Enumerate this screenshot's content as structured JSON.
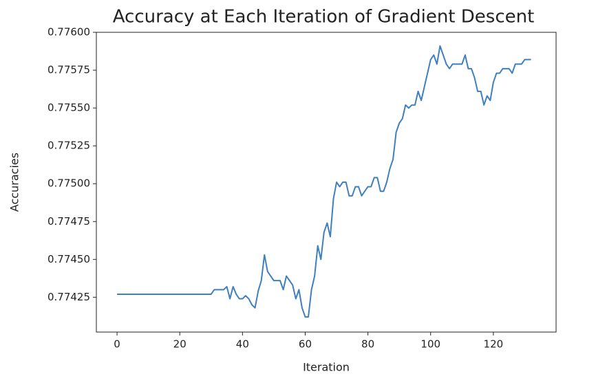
{
  "chart_data": {
    "type": "line",
    "title": "Accuracy at Each Iteration of Gradient Descent",
    "x_label": "Iteration",
    "y_label": "Accuracies",
    "x": [
      0,
      1,
      2,
      3,
      4,
      5,
      6,
      7,
      8,
      9,
      10,
      11,
      12,
      13,
      14,
      15,
      16,
      17,
      18,
      19,
      20,
      21,
      22,
      23,
      24,
      25,
      26,
      27,
      28,
      29,
      30,
      31,
      32,
      33,
      34,
      35,
      36,
      37,
      38,
      39,
      40,
      41,
      42,
      43,
      44,
      45,
      46,
      47,
      48,
      49,
      50,
      51,
      52,
      53,
      54,
      55,
      56,
      57,
      58,
      59,
      60,
      61,
      62,
      63,
      64,
      65,
      66,
      67,
      68,
      69,
      70,
      71,
      72,
      73,
      74,
      75,
      76,
      77,
      78,
      79,
      80,
      81,
      82,
      83,
      84,
      85,
      86,
      87,
      88,
      89,
      90,
      91,
      92,
      93,
      94,
      95,
      96,
      97,
      98,
      99,
      100,
      101,
      102,
      103,
      104,
      105,
      106,
      107,
      108,
      109,
      110,
      111,
      112,
      113,
      114,
      115,
      116,
      117,
      118,
      119,
      120,
      121,
      122,
      123,
      124,
      125,
      126,
      127,
      128,
      129,
      130,
      131,
      132
    ],
    "series": [
      {
        "color": "#3d7fbf",
        "values": [
          0.77427,
          0.77427,
          0.77427,
          0.77427,
          0.77427,
          0.77427,
          0.77427,
          0.77427,
          0.77427,
          0.77427,
          0.77427,
          0.77427,
          0.77427,
          0.77427,
          0.77427,
          0.77427,
          0.77427,
          0.77427,
          0.77427,
          0.77427,
          0.77427,
          0.77427,
          0.77427,
          0.77427,
          0.77427,
          0.77427,
          0.77427,
          0.77427,
          0.77427,
          0.77427,
          0.77427,
          0.7743,
          0.7743,
          0.7743,
          0.7743,
          0.77432,
          0.77424,
          0.77432,
          0.77427,
          0.77424,
          0.77424,
          0.77426,
          0.77424,
          0.7742,
          0.77418,
          0.77429,
          0.77436,
          0.77453,
          0.77442,
          0.77439,
          0.77436,
          0.77436,
          0.77436,
          0.7743,
          0.77439,
          0.77436,
          0.77433,
          0.77424,
          0.7743,
          0.77418,
          0.77412,
          0.77412,
          0.7743,
          0.77439,
          0.77459,
          0.7745,
          0.77468,
          0.77474,
          0.77465,
          0.7749,
          0.77501,
          0.77498,
          0.77501,
          0.77501,
          0.77492,
          0.77492,
          0.77498,
          0.77498,
          0.77492,
          0.77495,
          0.77498,
          0.77498,
          0.77504,
          0.77504,
          0.77495,
          0.77495,
          0.77501,
          0.7751,
          0.77516,
          0.77534,
          0.7754,
          0.77543,
          0.77552,
          0.7755,
          0.77552,
          0.77552,
          0.77561,
          0.77555,
          0.77564,
          0.77573,
          0.77582,
          0.77585,
          0.77579,
          0.77591,
          0.77585,
          0.77579,
          0.77576,
          0.77579,
          0.77579,
          0.77579,
          0.77579,
          0.77585,
          0.77576,
          0.77576,
          0.7757,
          0.77561,
          0.77561,
          0.77552,
          0.77558,
          0.77555,
          0.77567,
          0.77573,
          0.77573,
          0.77576,
          0.77576,
          0.77576,
          0.77573,
          0.77579,
          0.77579,
          0.77579,
          0.77582,
          0.77582,
          0.77582
        ]
      }
    ],
    "xlim": [
      -6.6,
      140
    ],
    "xticks": [
      0,
      20,
      40,
      60,
      80,
      100,
      120
    ],
    "ylim": [
      0.77402,
      0.776
    ],
    "yticks": [
      0.77425,
      {
        "value": 0.7745,
        "label": "0.77450"
      },
      0.77475,
      {
        "value": 0.775,
        "label": "0.77500"
      },
      0.77525,
      {
        "value": 0.7755,
        "label": "0.77550"
      },
      0.77575,
      {
        "value": 0.776,
        "label": "0.77600"
      }
    ]
  }
}
